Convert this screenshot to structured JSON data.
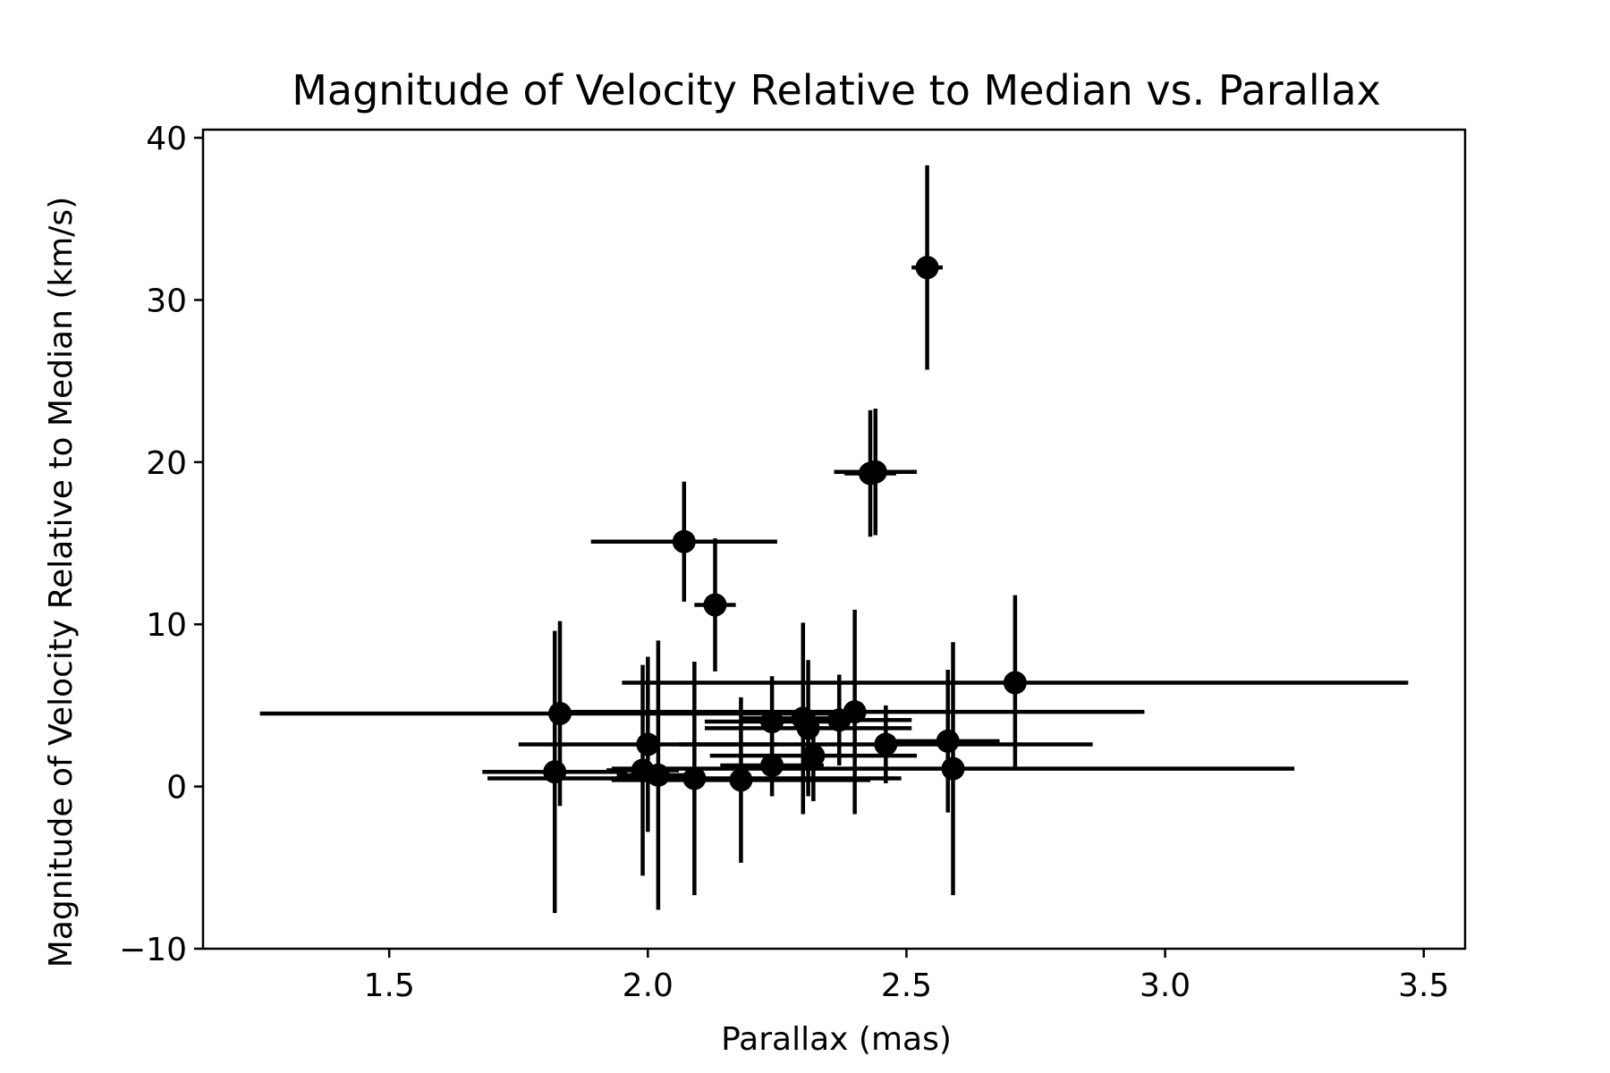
{
  "chart_data": {
    "type": "scatter",
    "title": "Magnitude of Velocity Relative to Median vs. Parallax",
    "xlabel": "Parallax (mas)",
    "ylabel": "Magnitude of Velocity Relative to Median (km/s)",
    "xlim": [
      1.14,
      3.58
    ],
    "ylim": [
      -10.0,
      40.5
    ],
    "xticks": [
      1.5,
      2.0,
      2.5,
      3.0,
      3.5
    ],
    "xtick_labels": [
      "1.5",
      "2.0",
      "2.5",
      "3.0",
      "3.5"
    ],
    "yticks": [
      -10,
      0,
      10,
      20,
      30,
      40
    ],
    "ytick_labels": [
      "−10",
      "0",
      "10",
      "20",
      "30",
      "40"
    ],
    "grid": false,
    "legend": "none",
    "marker_color": "#000000",
    "points": [
      {
        "x": 2.54,
        "y": 32.0,
        "xerr": 0.03,
        "yerr": 6.3
      },
      {
        "x": 2.43,
        "y": 19.3,
        "xerr": 0.05,
        "yerr": 3.9
      },
      {
        "x": 2.44,
        "y": 19.4,
        "xerr": 0.08,
        "yerr": 3.9
      },
      {
        "x": 2.07,
        "y": 15.1,
        "xerr": 0.18,
        "yerr": 3.7
      },
      {
        "x": 2.13,
        "y": 11.2,
        "xerr": 0.04,
        "yerr": 4.1
      },
      {
        "x": 2.71,
        "y": 6.4,
        "xerr": 0.76,
        "yerr": 5.4
      },
      {
        "x": 1.83,
        "y": 4.5,
        "xerr": 0.58,
        "yerr": 5.7
      },
      {
        "x": 2.4,
        "y": 4.6,
        "xerr": 0.56,
        "yerr": 6.3
      },
      {
        "x": 2.24,
        "y": 4.0,
        "xerr": 0.13,
        "yerr": 2.8
      },
      {
        "x": 2.3,
        "y": 4.2,
        "xerr": 0.12,
        "yerr": 5.9
      },
      {
        "x": 2.37,
        "y": 4.1,
        "xerr": 0.14,
        "yerr": 2.8
      },
      {
        "x": 2.31,
        "y": 3.6,
        "xerr": 0.2,
        "yerr": 4.2
      },
      {
        "x": 2.0,
        "y": 2.6,
        "xerr": 0.25,
        "yerr": 5.4
      },
      {
        "x": 2.46,
        "y": 2.6,
        "xerr": 0.4,
        "yerr": 2.4
      },
      {
        "x": 2.58,
        "y": 2.8,
        "xerr": 0.1,
        "yerr": 4.4
      },
      {
        "x": 2.32,
        "y": 1.9,
        "xerr": 0.2,
        "yerr": 2.8
      },
      {
        "x": 2.24,
        "y": 1.3,
        "xerr": 0.1,
        "yerr": 1.9
      },
      {
        "x": 1.82,
        "y": 0.9,
        "xerr": 0.14,
        "yerr": 8.7
      },
      {
        "x": 2.59,
        "y": 1.1,
        "xerr": 0.66,
        "yerr": 7.8
      },
      {
        "x": 1.99,
        "y": 1.0,
        "xerr": 0.07,
        "yerr": 6.5
      },
      {
        "x": 2.02,
        "y": 0.7,
        "xerr": 0.08,
        "yerr": 8.3
      },
      {
        "x": 2.09,
        "y": 0.5,
        "xerr": 0.4,
        "yerr": 7.2
      },
      {
        "x": 2.18,
        "y": 0.4,
        "xerr": 0.25,
        "yerr": 5.1
      }
    ]
  }
}
